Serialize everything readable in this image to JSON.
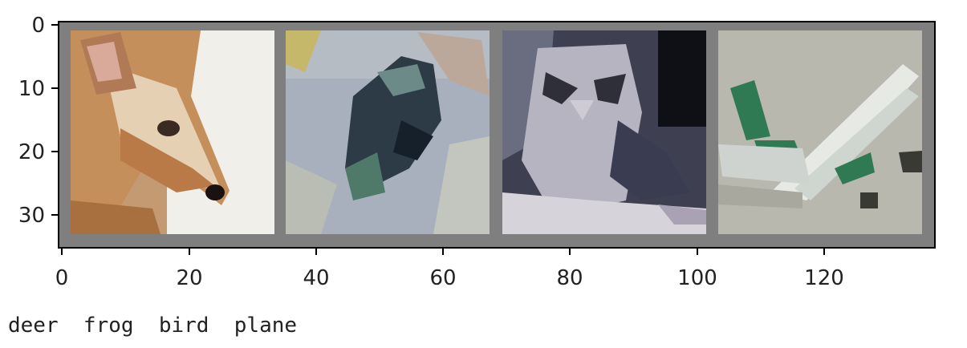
{
  "image_grid": {
    "x_ticks": [
      "0",
      "20",
      "40",
      "60",
      "80",
      "100",
      "120"
    ],
    "y_ticks": [
      "0",
      "10",
      "20",
      "30"
    ],
    "tiles": [
      {
        "subject": "deer",
        "palette": {
          "bg": "#c9a889",
          "body": "#b57b48",
          "fur": "#e8d2b6",
          "accent": "#f2f0ec",
          "dark": "#3a2418"
        }
      },
      {
        "subject": "frog",
        "palette": {
          "bg": "#9eaab6",
          "body": "#2b3b46",
          "fur": "#5a7a70",
          "accent": "#c3c7c0",
          "dark": "#12181c"
        }
      },
      {
        "subject": "bird",
        "palette": {
          "bg": "#4a4d5e",
          "body": "#8f92a6",
          "fur": "#c9c4cc",
          "accent": "#d6d2d8",
          "dark": "#15161c"
        }
      },
      {
        "subject": "plane",
        "palette": {
          "bg": "#b9b8ae",
          "body": "#e6e8e4",
          "fur": "#2f7a52",
          "accent": "#d7dbd6",
          "dark": "#3a3a34"
        }
      }
    ]
  },
  "caption": {
    "labels": [
      "deer",
      "frog",
      "bird",
      "plane"
    ],
    "text": "deer  frog  bird  plane"
  }
}
